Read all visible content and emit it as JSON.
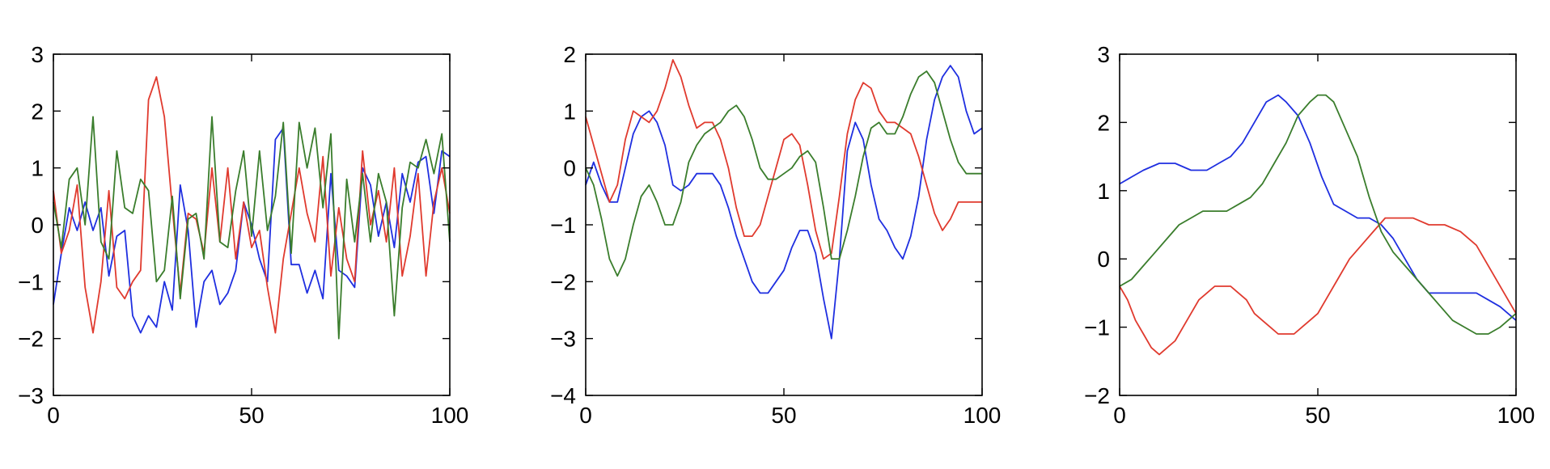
{
  "chart_data": [
    {
      "type": "line",
      "title": "",
      "xlabel": "",
      "ylabel": "",
      "xlim": [
        0,
        100
      ],
      "ylim": [
        -3,
        3
      ],
      "xticks": [
        0,
        50,
        100
      ],
      "yticks": [
        -3,
        -2,
        -1,
        0,
        1,
        2,
        3
      ],
      "xtick_labels": [
        "0",
        "50",
        "100"
      ],
      "ytick_labels": [
        "−3",
        "−2",
        "−1",
        "0",
        "1",
        "2",
        "3"
      ],
      "grid": false,
      "legend": "none",
      "series": [
        {
          "color": "#1f2fe0",
          "x": [
            0,
            2,
            4,
            6,
            8,
            10,
            12,
            14,
            16,
            18,
            20,
            22,
            24,
            26,
            28,
            30,
            32,
            34,
            36,
            38,
            40,
            42,
            44,
            46,
            48,
            50,
            52,
            54,
            56,
            58,
            60,
            62,
            64,
            66,
            68,
            70,
            72,
            74,
            76,
            78,
            80,
            82,
            84,
            86,
            88,
            90,
            92,
            94,
            96,
            98,
            100
          ],
          "y": [
            -1.4,
            -0.5,
            0.3,
            -0.1,
            0.4,
            -0.1,
            0.3,
            -0.9,
            -0.2,
            -0.1,
            -1.6,
            -1.9,
            -1.6,
            -1.8,
            -1.0,
            -1.5,
            0.7,
            -0.1,
            -1.8,
            -1.0,
            -0.8,
            -1.4,
            -1.2,
            -0.8,
            0.4,
            0.0,
            -0.6,
            -1.0,
            1.5,
            1.7,
            -0.7,
            -0.7,
            -1.2,
            -0.8,
            -1.3,
            0.9,
            -0.8,
            -0.9,
            -1.1,
            1.0,
            0.7,
            -0.2,
            0.4,
            -0.4,
            0.9,
            0.4,
            1.1,
            1.2,
            0.2,
            1.3,
            1.2
          ]
        },
        {
          "color": "#e03a2e",
          "x": [
            0,
            2,
            4,
            6,
            8,
            10,
            12,
            14,
            16,
            18,
            20,
            22,
            24,
            26,
            28,
            30,
            32,
            34,
            36,
            38,
            40,
            42,
            44,
            46,
            48,
            50,
            52,
            54,
            56,
            58,
            60,
            62,
            64,
            66,
            68,
            70,
            72,
            74,
            76,
            78,
            80,
            82,
            84,
            86,
            88,
            90,
            92,
            94,
            96,
            98,
            100
          ],
          "y": [
            0.6,
            -0.5,
            -0.1,
            0.7,
            -1.1,
            -1.9,
            -1.0,
            0.6,
            -1.1,
            -1.3,
            -1.0,
            -0.8,
            2.2,
            2.6,
            1.9,
            0.3,
            -1.2,
            0.2,
            0.1,
            -0.5,
            1.0,
            -0.3,
            1.0,
            -0.6,
            0.4,
            -0.4,
            -0.1,
            -1.1,
            -1.9,
            -0.6,
            0.2,
            1.0,
            0.2,
            -0.3,
            1.2,
            -0.9,
            0.3,
            -0.6,
            -1.0,
            1.3,
            0.0,
            0.6,
            -0.3,
            1.0,
            -0.9,
            -0.2,
            0.9,
            -0.9,
            0.4,
            1.0,
            0.2
          ]
        },
        {
          "color": "#3a7d2c",
          "x": [
            0,
            2,
            4,
            6,
            8,
            10,
            12,
            14,
            16,
            18,
            20,
            22,
            24,
            26,
            28,
            30,
            32,
            34,
            36,
            38,
            40,
            42,
            44,
            46,
            48,
            50,
            52,
            54,
            56,
            58,
            60,
            62,
            64,
            66,
            68,
            70,
            72,
            74,
            76,
            78,
            80,
            82,
            84,
            86,
            88,
            90,
            92,
            94,
            96,
            98,
            100
          ],
          "y": [
            0.4,
            -0.4,
            0.8,
            1.0,
            0.0,
            1.9,
            -0.3,
            -0.6,
            1.3,
            0.3,
            0.2,
            0.8,
            0.6,
            -1.0,
            -0.8,
            0.5,
            -1.3,
            0.1,
            0.2,
            -0.6,
            1.9,
            -0.3,
            -0.4,
            0.6,
            1.3,
            -0.2,
            1.3,
            -0.1,
            0.5,
            1.8,
            -0.5,
            1.8,
            1.0,
            1.7,
            0.3,
            1.6,
            -2.0,
            0.8,
            -0.3,
            0.9,
            -0.3,
            0.9,
            0.4,
            -1.6,
            0.3,
            1.1,
            1.0,
            1.5,
            0.9,
            1.6,
            -0.3
          ]
        }
      ]
    },
    {
      "type": "line",
      "title": "",
      "xlabel": "",
      "ylabel": "",
      "xlim": [
        0,
        100
      ],
      "ylim": [
        -4,
        2
      ],
      "xticks": [
        0,
        50,
        100
      ],
      "yticks": [
        -4,
        -3,
        -2,
        -1,
        0,
        1,
        2
      ],
      "xtick_labels": [
        "0",
        "50",
        "100"
      ],
      "ytick_labels": [
        "−4",
        "−3",
        "−2",
        "−1",
        "0",
        "1",
        "2"
      ],
      "grid": false,
      "legend": "none",
      "series": [
        {
          "color": "#1f2fe0",
          "x": [
            0,
            2,
            4,
            6,
            8,
            10,
            12,
            14,
            16,
            18,
            20,
            22,
            24,
            26,
            28,
            30,
            32,
            34,
            36,
            38,
            40,
            42,
            44,
            46,
            48,
            50,
            52,
            54,
            56,
            58,
            60,
            62,
            64,
            66,
            68,
            70,
            72,
            74,
            76,
            78,
            80,
            82,
            84,
            86,
            88,
            90,
            92,
            94,
            96,
            98,
            100
          ],
          "y": [
            -0.3,
            0.1,
            -0.3,
            -0.6,
            -0.6,
            0.0,
            0.6,
            0.9,
            1.0,
            0.8,
            0.4,
            -0.3,
            -0.4,
            -0.3,
            -0.1,
            -0.1,
            -0.1,
            -0.3,
            -0.7,
            -1.2,
            -1.6,
            -2.0,
            -2.2,
            -2.2,
            -2.0,
            -1.8,
            -1.4,
            -1.1,
            -1.1,
            -1.5,
            -2.3,
            -3.0,
            -1.6,
            0.3,
            0.8,
            0.5,
            -0.3,
            -0.9,
            -1.1,
            -1.4,
            -1.6,
            -1.2,
            -0.5,
            0.5,
            1.2,
            1.6,
            1.8,
            1.6,
            1.0,
            0.6,
            0.7
          ]
        },
        {
          "color": "#e03a2e",
          "x": [
            0,
            2,
            4,
            6,
            8,
            10,
            12,
            14,
            16,
            18,
            20,
            22,
            24,
            26,
            28,
            30,
            32,
            34,
            36,
            38,
            40,
            42,
            44,
            46,
            48,
            50,
            52,
            54,
            56,
            58,
            60,
            62,
            64,
            66,
            68,
            70,
            72,
            74,
            76,
            78,
            80,
            82,
            84,
            86,
            88,
            90,
            92,
            94,
            96,
            98,
            100
          ],
          "y": [
            0.9,
            0.4,
            -0.1,
            -0.6,
            -0.3,
            0.5,
            1.0,
            0.9,
            0.8,
            1.0,
            1.4,
            1.9,
            1.6,
            1.1,
            0.7,
            0.8,
            0.8,
            0.5,
            0.0,
            -0.7,
            -1.2,
            -1.2,
            -1.0,
            -0.5,
            0.0,
            0.5,
            0.6,
            0.4,
            -0.3,
            -1.1,
            -1.6,
            -1.5,
            -0.5,
            0.6,
            1.2,
            1.5,
            1.4,
            1.0,
            0.8,
            0.8,
            0.7,
            0.6,
            0.2,
            -0.3,
            -0.8,
            -1.1,
            -0.9,
            -0.6,
            -0.6,
            -0.6,
            -0.6
          ]
        },
        {
          "color": "#3a7d2c",
          "x": [
            0,
            2,
            4,
            6,
            8,
            10,
            12,
            14,
            16,
            18,
            20,
            22,
            24,
            26,
            28,
            30,
            32,
            34,
            36,
            38,
            40,
            42,
            44,
            46,
            48,
            50,
            52,
            54,
            56,
            58,
            60,
            62,
            64,
            66,
            68,
            70,
            72,
            74,
            76,
            78,
            80,
            82,
            84,
            86,
            88,
            90,
            92,
            94,
            96,
            98,
            100
          ],
          "y": [
            0.0,
            -0.3,
            -0.9,
            -1.6,
            -1.9,
            -1.6,
            -1.0,
            -0.5,
            -0.3,
            -0.6,
            -1.0,
            -1.0,
            -0.6,
            0.1,
            0.4,
            0.6,
            0.7,
            0.8,
            1.0,
            1.1,
            0.9,
            0.5,
            0.0,
            -0.2,
            -0.2,
            -0.1,
            0.0,
            0.2,
            0.3,
            0.1,
            -0.7,
            -1.6,
            -1.6,
            -1.1,
            -0.5,
            0.2,
            0.7,
            0.8,
            0.6,
            0.6,
            0.9,
            1.3,
            1.6,
            1.7,
            1.5,
            1.0,
            0.5,
            0.1,
            -0.1,
            -0.1,
            -0.1
          ]
        }
      ]
    },
    {
      "type": "line",
      "title": "",
      "xlabel": "",
      "ylabel": "",
      "xlim": [
        0,
        100
      ],
      "ylim": [
        -2,
        3
      ],
      "xticks": [
        0,
        50,
        100
      ],
      "yticks": [
        -2,
        -1,
        0,
        1,
        2,
        3
      ],
      "xtick_labels": [
        "0",
        "50",
        "100"
      ],
      "ytick_labels": [
        "−2",
        "−1",
        "0",
        "1",
        "2",
        "3"
      ],
      "grid": false,
      "legend": "none",
      "series": [
        {
          "color": "#1f2fe0",
          "x": [
            0,
            3,
            6,
            10,
            14,
            18,
            22,
            25,
            28,
            31,
            34,
            37,
            40,
            42,
            45,
            48,
            51,
            54,
            57,
            60,
            63,
            66,
            69,
            72,
            75,
            78,
            81,
            84,
            87,
            90,
            93,
            96,
            100
          ],
          "y": [
            1.1,
            1.2,
            1.3,
            1.4,
            1.4,
            1.3,
            1.3,
            1.4,
            1.5,
            1.7,
            2.0,
            2.3,
            2.4,
            2.3,
            2.1,
            1.7,
            1.2,
            0.8,
            0.7,
            0.6,
            0.6,
            0.5,
            0.3,
            0.0,
            -0.3,
            -0.5,
            -0.5,
            -0.5,
            -0.5,
            -0.5,
            -0.6,
            -0.7,
            -0.9
          ]
        },
        {
          "color": "#e03a2e",
          "x": [
            0,
            2,
            4,
            6,
            8,
            10,
            12,
            14,
            16,
            18,
            20,
            22,
            24,
            26,
            28,
            30,
            32,
            34,
            36,
            38,
            40,
            42,
            44,
            46,
            48,
            50,
            52,
            55,
            58,
            61,
            64,
            67,
            70,
            74,
            78,
            82,
            86,
            90,
            94,
            97,
            100
          ],
          "y": [
            -0.4,
            -0.6,
            -0.9,
            -1.1,
            -1.3,
            -1.4,
            -1.3,
            -1.2,
            -1.0,
            -0.8,
            -0.6,
            -0.5,
            -0.4,
            -0.4,
            -0.4,
            -0.5,
            -0.6,
            -0.8,
            -0.9,
            -1.0,
            -1.1,
            -1.1,
            -1.1,
            -1.0,
            -0.9,
            -0.8,
            -0.6,
            -0.3,
            0.0,
            0.2,
            0.4,
            0.6,
            0.6,
            0.6,
            0.5,
            0.5,
            0.4,
            0.2,
            -0.2,
            -0.5,
            -0.8
          ]
        },
        {
          "color": "#3a7d2c",
          "x": [
            0,
            3,
            6,
            9,
            12,
            15,
            18,
            21,
            24,
            27,
            30,
            33,
            36,
            39,
            42,
            45,
            48,
            50,
            52,
            54,
            57,
            60,
            63,
            66,
            69,
            72,
            75,
            78,
            81,
            84,
            87,
            90,
            93,
            96,
            100
          ],
          "y": [
            -0.4,
            -0.3,
            -0.1,
            0.1,
            0.3,
            0.5,
            0.6,
            0.7,
            0.7,
            0.7,
            0.8,
            0.9,
            1.1,
            1.4,
            1.7,
            2.1,
            2.3,
            2.4,
            2.4,
            2.3,
            1.9,
            1.5,
            0.9,
            0.4,
            0.1,
            -0.1,
            -0.3,
            -0.5,
            -0.7,
            -0.9,
            -1.0,
            -1.1,
            -1.1,
            -1.0,
            -0.8
          ]
        }
      ]
    }
  ]
}
